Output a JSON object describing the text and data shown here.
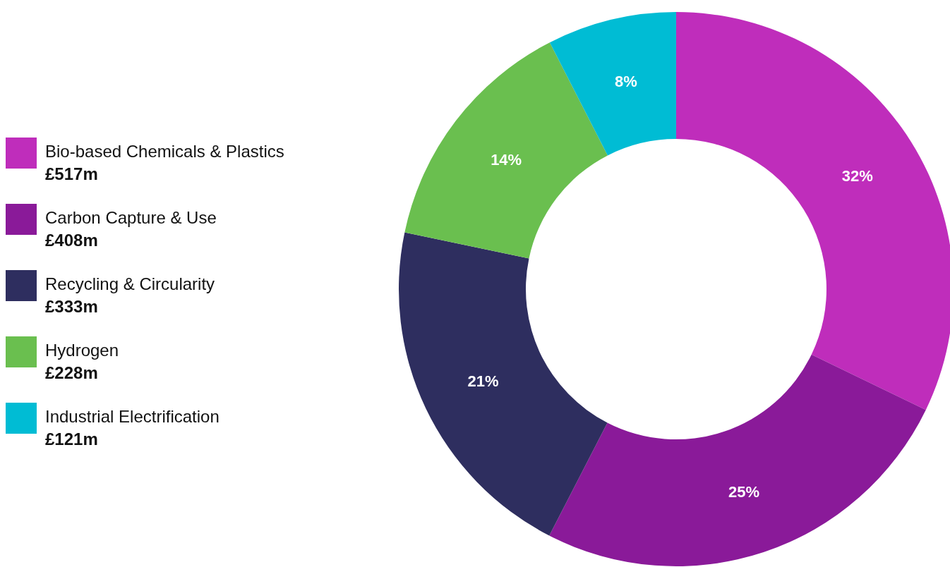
{
  "chart_data": {
    "type": "donut",
    "categories": [
      "Bio-based Chemicals & Plastics",
      "Carbon Capture & Use",
      "Recycling & Circularity",
      "Hydrogen",
      "Industrial Electrification"
    ],
    "values": [
      517,
      408,
      333,
      228,
      121
    ],
    "value_labels": [
      "£517m",
      "£408m",
      "£333m",
      "£228m",
      "£121m"
    ],
    "colors": [
      "#bf2dbb",
      "#8a1a99",
      "#2e2e5f",
      "#6abf4f",
      "#00bcd4"
    ],
    "annotations": [
      "32%",
      "25%",
      "21%",
      "14%",
      "8%"
    ],
    "legend": "left"
  }
}
